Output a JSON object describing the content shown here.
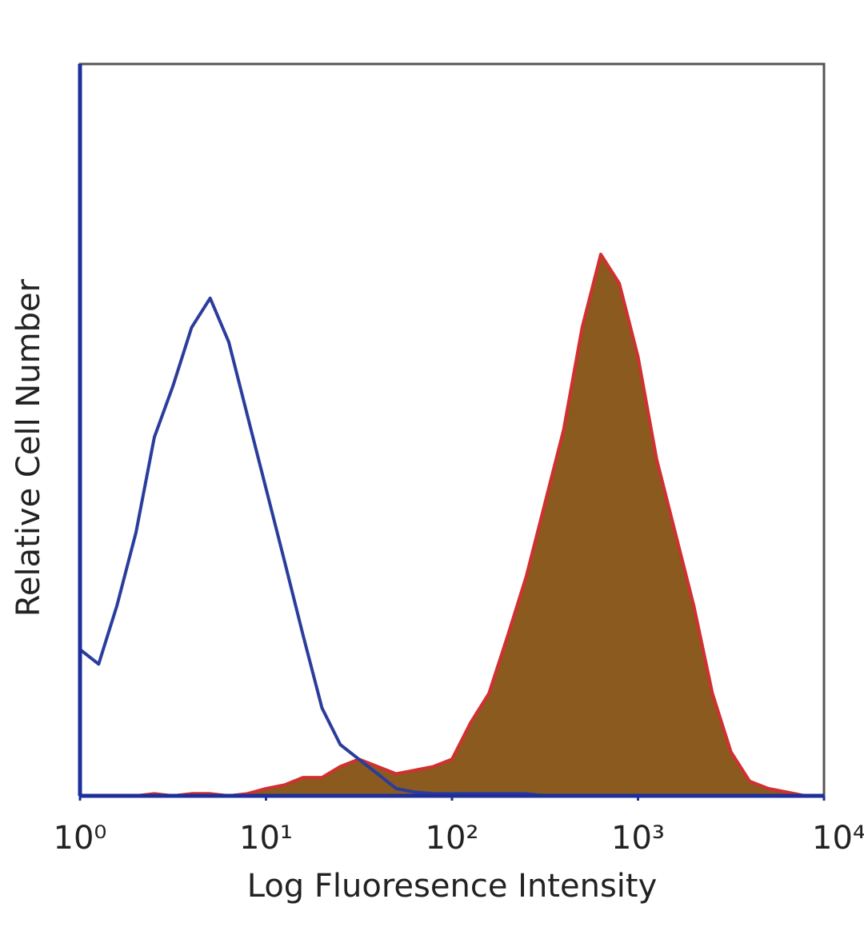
{
  "chart_data": {
    "type": "area",
    "xlabel": "Log Fluoresence Intensity",
    "ylabel": "Relative Cell Number",
    "log_x": true,
    "x": [
      1,
      1.26,
      1.58,
      2.0,
      2.51,
      3.16,
      3.98,
      5.01,
      6.31,
      7.94,
      10,
      12.6,
      15.8,
      20,
      25.1,
      31.6,
      39.8,
      50.1,
      63.1,
      79.4,
      100,
      126,
      158,
      200,
      251,
      316,
      398,
      501,
      631,
      794,
      1000,
      1259,
      1585,
      1995,
      2512,
      3162,
      3981,
      5012,
      6310,
      7943,
      10000
    ],
    "series": [
      {
        "color": "#2b3d9c",
        "filled": false,
        "values": [
          20,
          18,
          26,
          36,
          49,
          56,
          64,
          68,
          62,
          52,
          42,
          32,
          22,
          12,
          7,
          5,
          3,
          1,
          0.5,
          0.3,
          0.3,
          0.3,
          0.3,
          0.3,
          0.3,
          0,
          0,
          0,
          0,
          0,
          0,
          0,
          0,
          0,
          0,
          0,
          0,
          0,
          0,
          0,
          0
        ]
      },
      {
        "color": "#d03030",
        "fill": "#8b5a1e",
        "filled": true,
        "values": [
          0,
          0,
          0,
          0,
          0.3,
          0,
          0.3,
          0.3,
          0,
          0.3,
          1,
          1.5,
          2.5,
          2.5,
          4,
          5,
          4,
          3,
          3.5,
          4,
          5,
          10,
          14,
          22,
          30,
          40,
          50,
          64,
          74,
          70,
          60,
          46,
          36,
          26,
          14,
          6,
          2,
          1,
          0.5,
          0,
          0
        ]
      }
    ],
    "xlim": [
      1,
      10000
    ],
    "ylim": [
      0,
      100
    ],
    "xticks": [
      {
        "value": 1,
        "label": "10⁰"
      },
      {
        "value": 10,
        "label": "10¹"
      },
      {
        "value": 100,
        "label": "10²"
      },
      {
        "value": 1000,
        "label": "10³"
      },
      {
        "value": 10000,
        "label": "10⁴"
      }
    ],
    "axis_color": "#1e2f99"
  }
}
